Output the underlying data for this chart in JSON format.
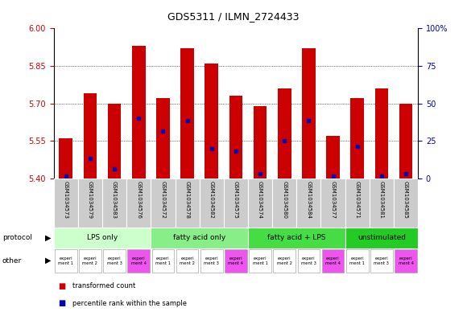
{
  "title": "GDS5311 / ILMN_2724433",
  "samples": [
    "GSM1034573",
    "GSM1034579",
    "GSM1034583",
    "GSM1034576",
    "GSM1034572",
    "GSM1034578",
    "GSM1034582",
    "GSM1034575",
    "GSM1034574",
    "GSM1034580",
    "GSM1034584",
    "GSM1034577",
    "GSM1034571",
    "GSM1034581",
    "GSM1034585"
  ],
  "transformed_count": [
    5.56,
    5.74,
    5.7,
    5.93,
    5.72,
    5.92,
    5.86,
    5.73,
    5.69,
    5.76,
    5.92,
    5.57,
    5.72,
    5.76,
    5.7
  ],
  "percentile_rank": [
    5.41,
    5.48,
    5.44,
    5.64,
    5.59,
    5.63,
    5.52,
    5.51,
    5.42,
    5.55,
    5.63,
    5.41,
    5.53,
    5.41,
    5.42
  ],
  "bar_bottom": 5.4,
  "ylim_left": [
    5.4,
    6.0
  ],
  "ylim_right": [
    0,
    100
  ],
  "yticks_left": [
    5.4,
    5.55,
    5.7,
    5.85,
    6.0
  ],
  "yticks_right": [
    0,
    25,
    50,
    75,
    100
  ],
  "protocol_groups": [
    {
      "label": "LPS only",
      "start": 0,
      "end": 4,
      "color": "#ccffcc"
    },
    {
      "label": "fatty acid only",
      "start": 4,
      "end": 8,
      "color": "#88ee88"
    },
    {
      "label": "fatty acid + LPS",
      "start": 8,
      "end": 12,
      "color": "#44dd44"
    },
    {
      "label": "unstimulated",
      "start": 12,
      "end": 15,
      "color": "#22cc22"
    }
  ],
  "other_labels": [
    "experi\nment 1",
    "experi\nment 2",
    "experi\nment 3",
    "experi\nment 4",
    "experi\nment 1",
    "experi\nment 2",
    "experi\nment 3",
    "experi\nment 4",
    "experi\nment 1",
    "experi\nment 2",
    "experi\nment 3",
    "experi\nment 4",
    "experi\nment 1",
    "experi\nment 3",
    "experi\nment 4"
  ],
  "other_colors": [
    "#ffffff",
    "#ffffff",
    "#ffffff",
    "#ee55ee",
    "#ffffff",
    "#ffffff",
    "#ffffff",
    "#ee55ee",
    "#ffffff",
    "#ffffff",
    "#ffffff",
    "#ee55ee",
    "#ffffff",
    "#ffffff",
    "#ee55ee"
  ],
  "bar_color": "#cc0000",
  "percentile_color": "#0000bb",
  "label_color_left": "#cc0000",
  "label_color_right": "#0000bb",
  "sample_bg_color": "#cccccc",
  "grid_linestyle": "dotted"
}
